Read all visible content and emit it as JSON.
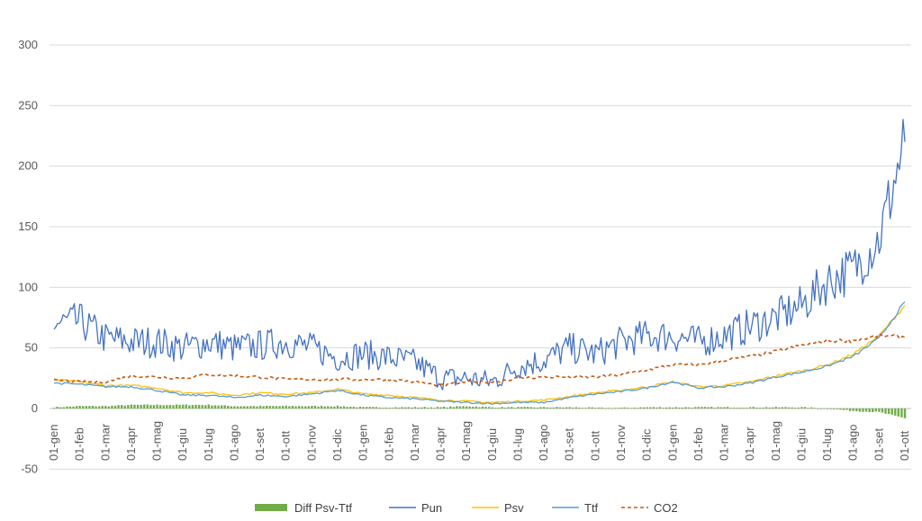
{
  "chart_data": {
    "type": "line",
    "ylim": [
      -50,
      310
    ],
    "yticks": [
      300,
      250,
      200,
      150,
      100,
      50,
      0,
      -50
    ],
    "grid": true,
    "legend_position": "bottom",
    "categories": [
      "01-gen",
      "01-feb",
      "01-mar",
      "01-apr",
      "01-mag",
      "01-giu",
      "01-lug",
      "01-ago",
      "01-set",
      "01-ott",
      "01-nov",
      "01-dic",
      "01-gen",
      "01-feb",
      "01-mar",
      "01-apr",
      "01-mag",
      "01-giu",
      "01-lug",
      "01-ago",
      "01-set",
      "01-ott",
      "01-nov",
      "01-dic",
      "01-gen",
      "01-feb",
      "01-mar",
      "01-apr",
      "01-mag",
      "01-giu",
      "01-lug",
      "01-ago",
      "01-set",
      "01-ott"
    ],
    "series": [
      {
        "name": "Diff Psv-Ttf",
        "kind": "column",
        "color": "#70ad47",
        "values": [
          1,
          2,
          2,
          3,
          3,
          3,
          3,
          2,
          2,
          2,
          2,
          2,
          1,
          1,
          1,
          1,
          2,
          1,
          1,
          1,
          1,
          0.5,
          0.5,
          1,
          1,
          1,
          1,
          1,
          1,
          1,
          0,
          -2,
          -3,
          -8
        ]
      },
      {
        "name": "Pun",
        "kind": "line",
        "color": "#4472c4",
        "values": [
          70,
          72,
          58,
          55,
          55,
          50,
          55,
          50,
          52,
          55,
          50,
          42,
          45,
          42,
          38,
          25,
          25,
          22,
          35,
          40,
          50,
          45,
          55,
          60,
          60,
          55,
          60,
          68,
          75,
          85,
          105,
          115,
          140,
          220
        ]
      },
      {
        "name": "Psv",
        "kind": "line",
        "color": "#ffc000",
        "values": [
          24,
          22,
          19,
          19,
          17,
          13,
          13,
          11,
          13,
          12,
          13,
          16,
          12,
          11,
          9,
          7,
          6,
          5,
          6,
          7,
          10,
          13,
          15,
          18,
          22,
          18,
          19,
          22,
          27,
          31,
          36,
          45,
          60,
          85
        ]
      },
      {
        "name": "Ttf",
        "kind": "line",
        "color": "#5b9bd5",
        "values": [
          21,
          20,
          18,
          18,
          15,
          11,
          11,
          9,
          11,
          10,
          12,
          15,
          11,
          9,
          8,
          6,
          5,
          4,
          5,
          5,
          9,
          12,
          14,
          17,
          22,
          17,
          18,
          21,
          26,
          30,
          35,
          43,
          58,
          88
        ]
      },
      {
        "name": "CO2",
        "kind": "dashed",
        "color": "#c55a11",
        "values": [
          23,
          22,
          22,
          27,
          26,
          25,
          28,
          27,
          26,
          24,
          24,
          24,
          24,
          24,
          22,
          19,
          22,
          22,
          25,
          26,
          26,
          26,
          28,
          32,
          36,
          36,
          40,
          43,
          47,
          52,
          56,
          56,
          60,
          59
        ]
      }
    ]
  }
}
